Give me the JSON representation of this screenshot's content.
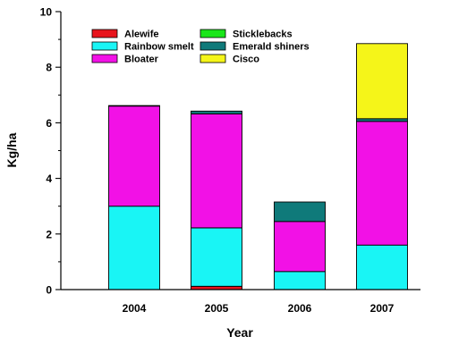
{
  "chart_data": {
    "type": "bar",
    "stacked": true,
    "title": "",
    "xlabel": "Year",
    "ylabel": "Kg/ha",
    "ylim": [
      0,
      10
    ],
    "yticks": [
      0,
      2,
      4,
      6,
      8,
      10
    ],
    "ytick_labels": [
      "0",
      "2",
      "4",
      "6",
      "8",
      "10"
    ],
    "y_minor_ticks": [
      1,
      3,
      5,
      7,
      9
    ],
    "grid": false,
    "legend_position": "top-left",
    "categories": [
      "2004",
      "2005",
      "2006",
      "2007"
    ],
    "series": [
      {
        "name": "Alewife",
        "color": "#e8141c",
        "values": [
          0.0,
          0.12,
          0.0,
          0.0
        ]
      },
      {
        "name": "Rainbow smelt",
        "color": "#19f5f5",
        "values": [
          3.0,
          2.1,
          0.65,
          1.6
        ]
      },
      {
        "name": "Bloater",
        "color": "#f211e6",
        "values": [
          3.6,
          4.1,
          1.8,
          4.45
        ]
      },
      {
        "name": "Sticklebacks",
        "color": "#19e619",
        "values": [
          0.0,
          0.0,
          0.0,
          0.0
        ]
      },
      {
        "name": "Emerald shiners",
        "color": "#0f7a7a",
        "values": [
          0.02,
          0.1,
          0.7,
          0.1
        ]
      },
      {
        "name": "Cisco",
        "color": "#f5f519",
        "values": [
          0.0,
          0.0,
          0.0,
          2.7
        ]
      }
    ]
  }
}
